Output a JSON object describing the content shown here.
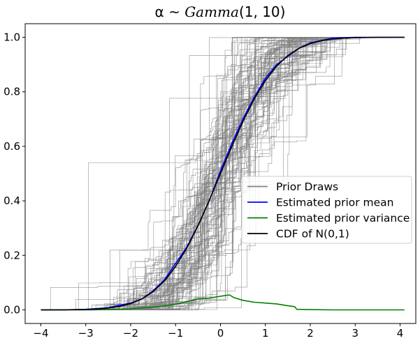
{
  "chart_data": {
    "type": "line",
    "title_parts": [
      "α ~ ",
      "Gamma",
      "(1, 10)"
    ],
    "xlabel": "",
    "ylabel": "",
    "xlim": [
      -4.35,
      4.35
    ],
    "ylim": [
      -0.05,
      1.05
    ],
    "xticks": [
      -4,
      -3,
      -2,
      -1,
      0,
      1,
      2,
      3,
      4
    ],
    "xtick_labels": [
      "−4",
      "−3",
      "−2",
      "−1",
      "0",
      "1",
      "2",
      "3",
      "4"
    ],
    "yticks": [
      0.0,
      0.2,
      0.4,
      0.6,
      0.8,
      1.0
    ],
    "ytick_labels": [
      "0.0",
      "0.2",
      "0.4",
      "0.6",
      "0.8",
      "1.0"
    ],
    "grid": false,
    "legend_position": "center-right",
    "legend": [
      {
        "label": "Prior Draws",
        "color": "#808080"
      },
      {
        "label": "Estimated prior mean",
        "color": "#0000ff"
      },
      {
        "label": "Estimated prior variance",
        "color": "#008000"
      },
      {
        "label": "CDF of N(0,1)",
        "color": "#000000"
      }
    ],
    "prior_draws": {
      "count": 100,
      "x_range": [
        -4,
        4.1
      ],
      "color": "#808080"
    },
    "series": [
      {
        "name": "Estimated prior mean",
        "color": "#0000ff",
        "x": [
          -4,
          -3.5,
          -3,
          -2.5,
          -2,
          -1.75,
          -1.5,
          -1.25,
          -1,
          -0.75,
          -0.5,
          -0.25,
          0,
          0.25,
          0.5,
          0.75,
          1,
          1.25,
          1.5,
          1.75,
          2,
          2.5,
          3,
          3.5,
          4.1
        ],
        "y": [
          0.0,
          0.0,
          0.002,
          0.008,
          0.025,
          0.04,
          0.07,
          0.11,
          0.17,
          0.23,
          0.31,
          0.4,
          0.51,
          0.61,
          0.7,
          0.78,
          0.85,
          0.9,
          0.93,
          0.96,
          0.98,
          0.997,
          1.0,
          1.0,
          1.0
        ]
      },
      {
        "name": "Estimated prior variance",
        "color": "#008000",
        "x": [
          -4,
          -3,
          -2.5,
          -2,
          -1.5,
          -1,
          -0.75,
          -0.5,
          -0.25,
          0,
          0.2,
          0.3,
          0.5,
          0.75,
          1,
          1.25,
          1.5,
          1.65,
          1.7,
          2,
          2.5,
          3,
          4.1
        ],
        "y": [
          0.0,
          0.0,
          0.001,
          0.004,
          0.01,
          0.02,
          0.03,
          0.04,
          0.043,
          0.05,
          0.055,
          0.045,
          0.035,
          0.028,
          0.025,
          0.022,
          0.015,
          0.012,
          0.002,
          0.001,
          0.0,
          0.0,
          0.0
        ]
      },
      {
        "name": "CDF of N(0,1)",
        "color": "#000000",
        "x": [
          -4,
          -3.5,
          -3,
          -2.75,
          -2.5,
          -2.25,
          -2,
          -1.75,
          -1.5,
          -1.25,
          -1,
          -0.75,
          -0.5,
          -0.25,
          0,
          0.25,
          0.5,
          0.75,
          1,
          1.25,
          1.5,
          1.75,
          2,
          2.25,
          2.5,
          2.75,
          3,
          3.5,
          4.1
        ],
        "y": [
          0.0,
          0.0002,
          0.0013,
          0.003,
          0.0062,
          0.0122,
          0.0228,
          0.0401,
          0.0668,
          0.1056,
          0.1587,
          0.2266,
          0.3085,
          0.4013,
          0.5,
          0.5987,
          0.6915,
          0.7734,
          0.8413,
          0.8944,
          0.9332,
          0.9599,
          0.9772,
          0.9878,
          0.9938,
          0.997,
          0.9987,
          0.9998,
          1.0
        ]
      }
    ]
  }
}
